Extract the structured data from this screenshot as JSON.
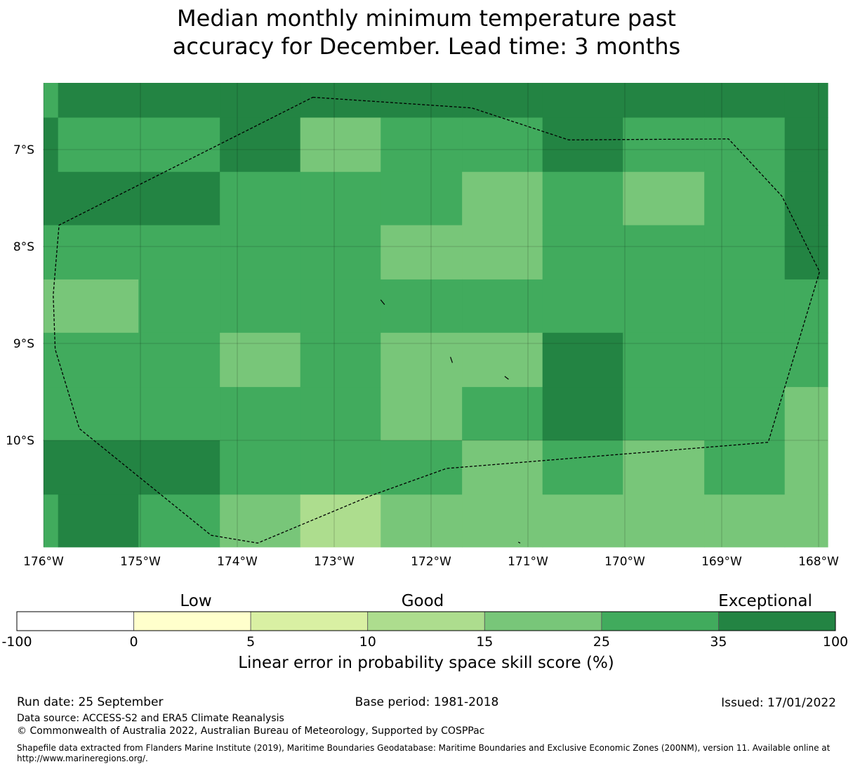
{
  "title": {
    "line1": "Median monthly minimum temperature past",
    "line2": "accuracy for December. Lead time: 3 months"
  },
  "map": {
    "lon_range": [
      -176,
      -167.9
    ],
    "lat_range": [
      -11.1,
      -6.3
    ],
    "lon_ticks": [
      {
        "value": -176,
        "label": "176°W"
      },
      {
        "value": -175,
        "label": "175°W"
      },
      {
        "value": -174,
        "label": "174°W"
      },
      {
        "value": -173,
        "label": "173°W"
      },
      {
        "value": -172,
        "label": "172°W"
      },
      {
        "value": -171,
        "label": "171°W"
      },
      {
        "value": -170,
        "label": "170°W"
      },
      {
        "value": -169,
        "label": "169°W"
      },
      {
        "value": -168,
        "label": "168°W"
      }
    ],
    "lat_ticks": [
      {
        "value": -7,
        "label": "7°S"
      },
      {
        "value": -8,
        "label": "8°S"
      },
      {
        "value": -9,
        "label": "9°S"
      },
      {
        "value": -10,
        "label": "10°S"
      }
    ],
    "grid": true,
    "cell_lon_edges": [
      -176,
      -175.85,
      -175.02,
      -174.18,
      -173.35,
      -172.52,
      -171.68,
      -170.85,
      -170.02,
      -169.18,
      -168.35,
      -167.9
    ],
    "cell_lat_edges": [
      -6.3,
      -6.67,
      -7.23,
      -7.78,
      -8.34,
      -8.89,
      -9.45,
      -10.0,
      -10.56,
      -11.1
    ],
    "category_colors": [
      "#ffffff",
      "#ffffcc",
      "#d9f0a3",
      "#addd8e",
      "#78c679",
      "#41ab5d",
      "#238443"
    ],
    "cells": [
      [
        5,
        6,
        6,
        6,
        6,
        6,
        6,
        6,
        6,
        6,
        6
      ],
      [
        6,
        5,
        5,
        6,
        4,
        5,
        5,
        6,
        5,
        5,
        6
      ],
      [
        6,
        6,
        6,
        5,
        5,
        5,
        4,
        5,
        4,
        5,
        6
      ],
      [
        5,
        5,
        5,
        5,
        5,
        4,
        4,
        5,
        5,
        5,
        6
      ],
      [
        4,
        4,
        5,
        5,
        5,
        5,
        5,
        5,
        5,
        5,
        5
      ],
      [
        5,
        5,
        5,
        4,
        5,
        4,
        4,
        6,
        5,
        5,
        5
      ],
      [
        5,
        5,
        5,
        5,
        5,
        4,
        5,
        6,
        5,
        5,
        4
      ],
      [
        6,
        6,
        6,
        5,
        5,
        5,
        4,
        5,
        4,
        5,
        4
      ],
      [
        5,
        6,
        5,
        4,
        3,
        4,
        4,
        4,
        4,
        4,
        4
      ]
    ],
    "eez_boundary": [
      [
        -173.22,
        -6.46
      ],
      [
        -171.58,
        -6.57
      ],
      [
        -170.58,
        -6.9
      ],
      [
        -168.93,
        -6.89
      ],
      [
        -168.38,
        -7.48
      ],
      [
        -167.99,
        -8.26
      ],
      [
        -168.52,
        -10.02
      ],
      [
        -171.84,
        -10.29
      ],
      [
        -172.62,
        -10.57
      ],
      [
        -173.79,
        -11.06
      ],
      [
        -174.27,
        -10.98
      ],
      [
        -175.63,
        -9.88
      ],
      [
        -175.88,
        -9.06
      ],
      [
        -175.9,
        -8.5
      ],
      [
        -175.84,
        -7.78
      ],
      [
        -173.22,
        -6.46
      ]
    ],
    "islands": [
      [
        [
          -172.52,
          -8.55
        ],
        [
          -172.48,
          -8.6
        ]
      ],
      [
        [
          -171.8,
          -9.14
        ],
        [
          -171.78,
          -9.2
        ]
      ],
      [
        [
          -171.24,
          -9.34
        ],
        [
          -171.2,
          -9.37
        ]
      ],
      [
        [
          -171.1,
          -11.05
        ],
        [
          -171.08,
          -11.06
        ]
      ]
    ]
  },
  "colorbar": {
    "category_labels": [
      "Low",
      "Good",
      "Exceptional"
    ],
    "ticks": [
      "-100",
      "0",
      "5",
      "10",
      "15",
      "25",
      "35",
      "100"
    ],
    "colors": [
      "#ffffff",
      "#ffffcc",
      "#d9f0a3",
      "#addd8e",
      "#78c679",
      "#41ab5d",
      "#238443"
    ],
    "label": "Linear error in probability space skill score (%)"
  },
  "footer": {
    "run_date": "Run date: 25 September",
    "base_period": "Base period: 1981-2018",
    "issued": "Issued: 17/01/2022",
    "data_source": "Data source: ACCESS-S2 and ERA5 Climate Reanalysis",
    "copyright": "© Commonwealth of Australia 2022, Australian Bureau of Meteorology, Supported by COSPPac",
    "shapefile_line1": "Shapefile data extracted from Flanders Marine Institute (2019), Maritime Boundaries Geodatabase: Maritime Boundaries and Exclusive Economic Zones (200NM), version 11. Available online at",
    "shapefile_line2": "http://www.marineregions.org/."
  }
}
